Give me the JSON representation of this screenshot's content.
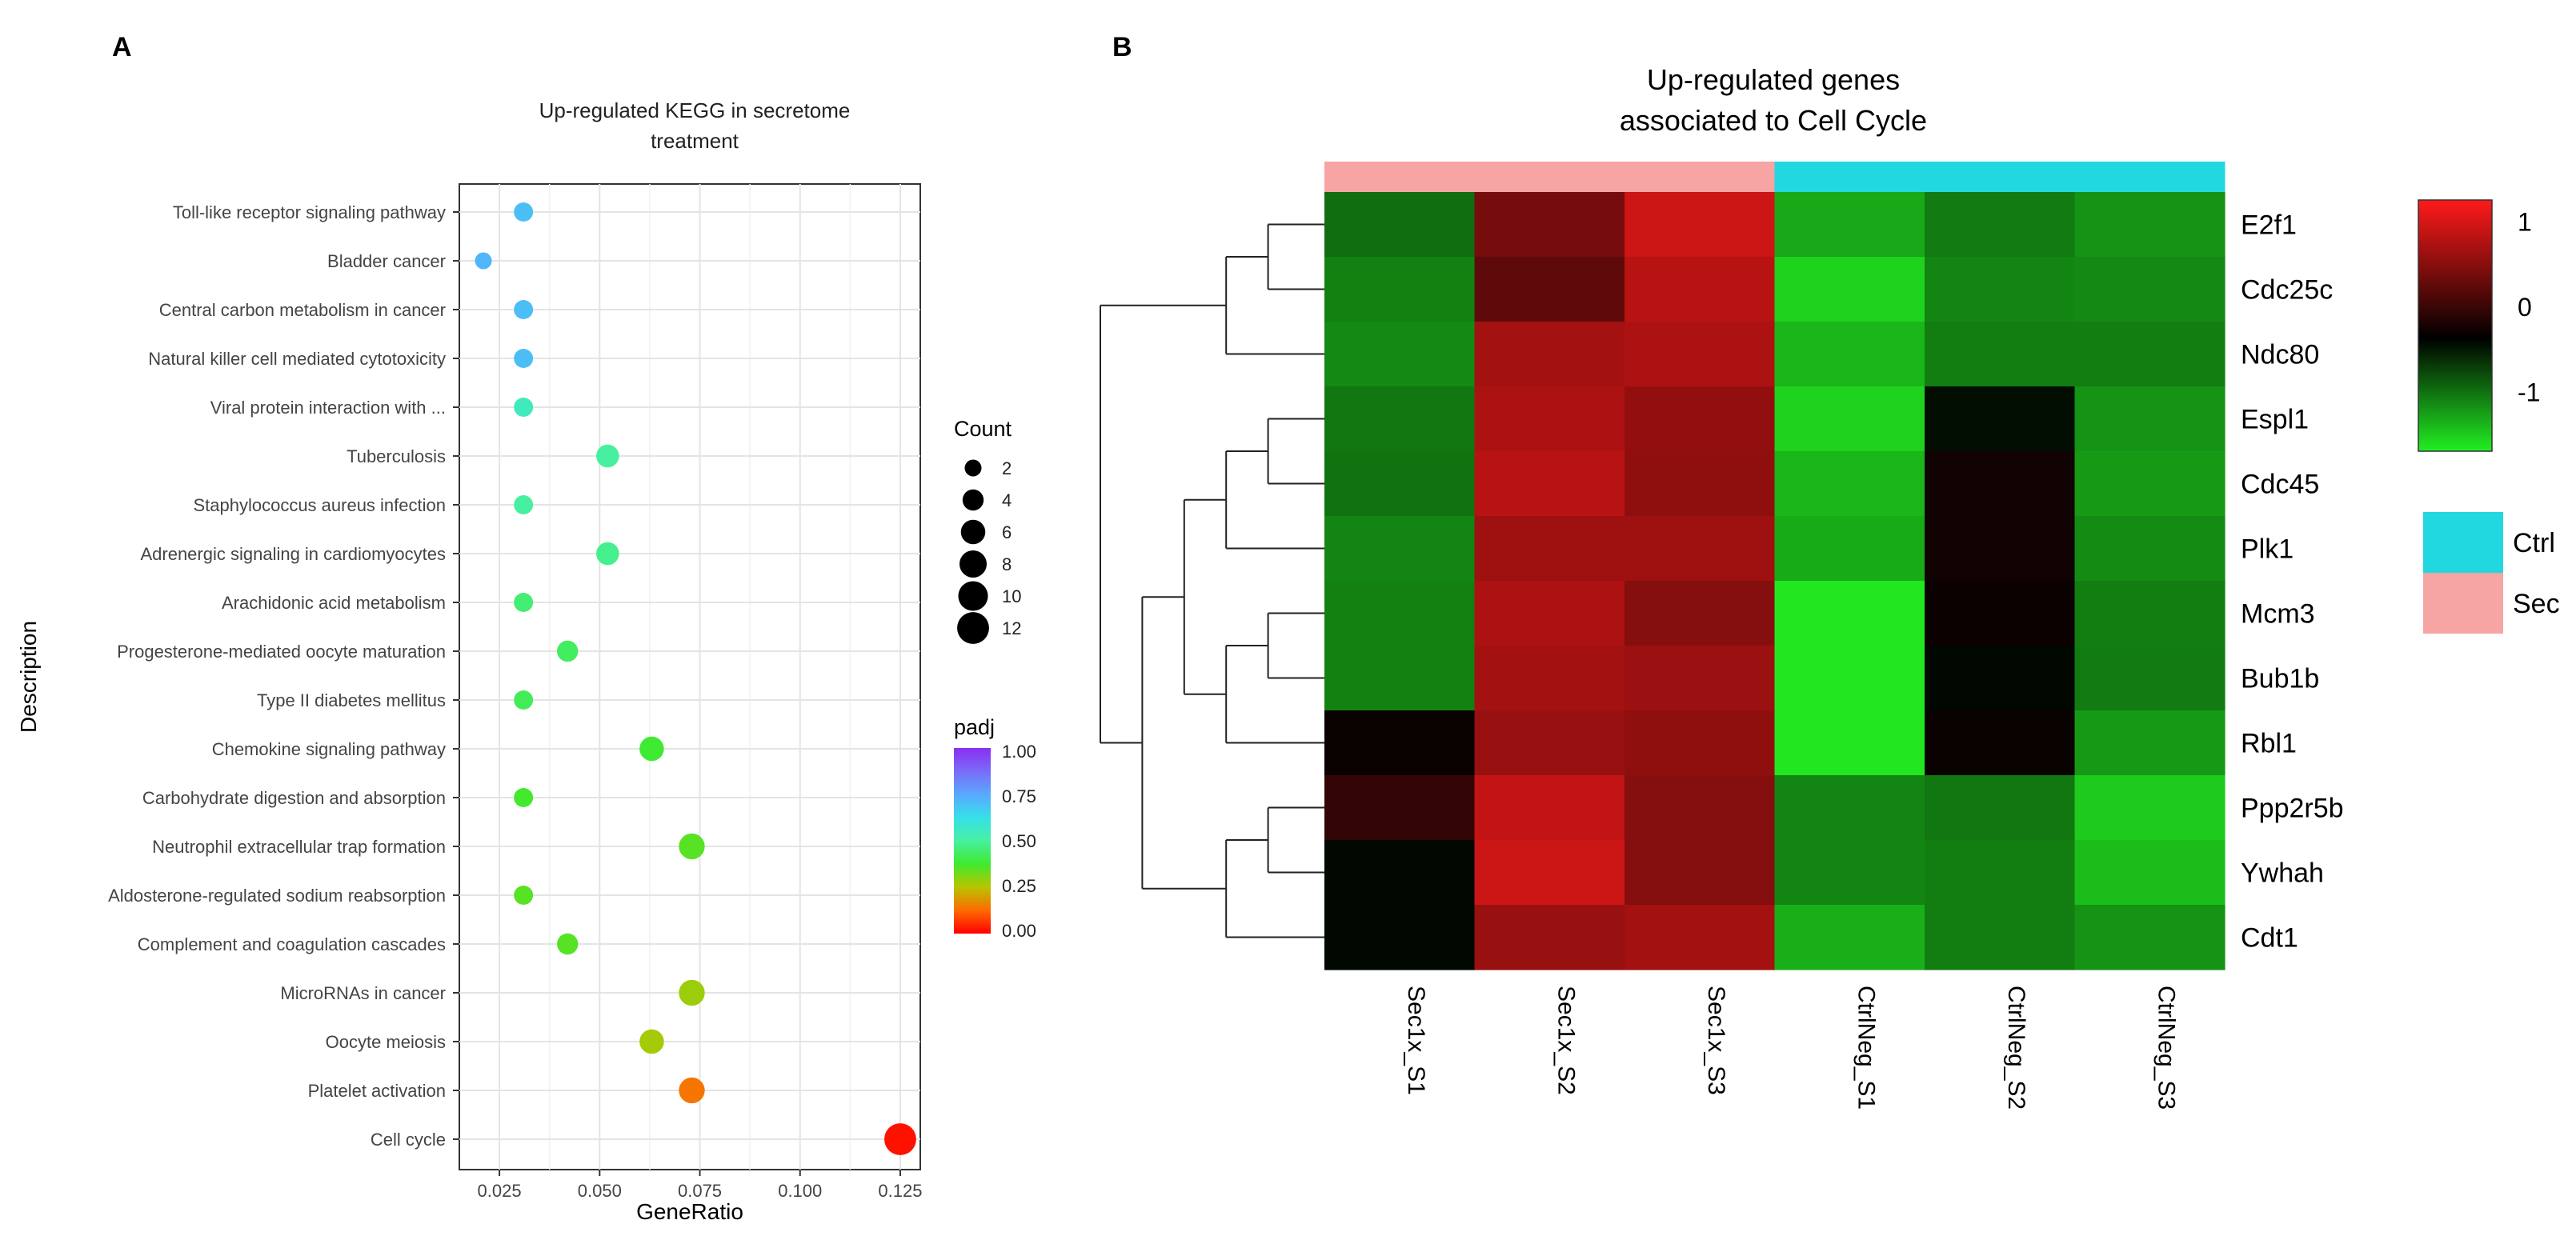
{
  "panels": {
    "a_label": "A",
    "b_label": "B"
  },
  "chart_data": [
    {
      "type": "scatter",
      "title_lines": [
        "Up-regulated KEGG in secretome",
        "treatment"
      ],
      "xlabel": "GeneRatio",
      "ylabel": "Description",
      "xlim": [
        0.015,
        0.13
      ],
      "x_ticks": [
        0.025,
        0.05,
        0.075,
        0.1,
        0.125
      ],
      "x_tick_labels": [
        "0.025",
        "0.050",
        "0.075",
        "0.100",
        "0.125"
      ],
      "grid": true,
      "legend_position": "right",
      "categories": [
        "Toll-like receptor signaling pathway",
        "Bladder cancer",
        "Central carbon metabolism in cancer",
        "Natural killer cell mediated cytotoxicity",
        "Viral protein interaction with ...",
        "Tuberculosis",
        "Staphylococcus aureus infection",
        "Adrenergic signaling in cardiomyocytes",
        "Arachidonic acid metabolism",
        "Progesterone-mediated oocyte maturation",
        "Type II diabetes mellitus",
        "Chemokine signaling pathway",
        "Carbohydrate digestion and absorption",
        "Neutrophil extracellular trap formation",
        "Aldosterone-regulated sodium reabsorption",
        "Complement and coagulation cascades",
        "MicroRNAs in cancer",
        "Oocyte meiosis",
        "Platelet activation",
        "Cell cycle"
      ],
      "gene_ratio": [
        0.031,
        0.021,
        0.031,
        0.031,
        0.031,
        0.052,
        0.031,
        0.052,
        0.031,
        0.042,
        0.031,
        0.063,
        0.031,
        0.073,
        0.031,
        0.042,
        0.073,
        0.063,
        0.073,
        0.125
      ],
      "count": [
        3,
        2,
        3,
        3,
        3,
        5,
        3,
        5,
        3,
        4,
        3,
        6,
        3,
        7,
        3,
        4,
        7,
        6,
        7,
        12
      ],
      "padj": [
        0.7,
        0.72,
        0.7,
        0.7,
        0.55,
        0.5,
        0.5,
        0.48,
        0.45,
        0.43,
        0.42,
        0.38,
        0.37,
        0.35,
        0.35,
        0.35,
        0.28,
        0.27,
        0.14,
        0.02
      ],
      "legend_count": {
        "title": "Count",
        "values": [
          2,
          4,
          6,
          8,
          10,
          12
        ],
        "labels": [
          "2",
          "4",
          "6",
          "8",
          "10",
          "12"
        ]
      },
      "legend_padj": {
        "title": "padj",
        "ticks": [
          1.0,
          0.75,
          0.5,
          0.25,
          0.0
        ],
        "tick_labels": [
          "1.00",
          "0.75",
          "0.50",
          "0.25",
          "0.00"
        ],
        "colors": [
          "#ff0000",
          "#ff6a00",
          "#b8c400",
          "#3fea2e",
          "#47f0a0",
          "#36e0e8",
          "#5aa8ff",
          "#7a6cf8",
          "#8a2ef2"
        ]
      }
    },
    {
      "type": "heatmap",
      "title_lines": [
        "Up-regulated genes",
        "associated to Cell Cycle"
      ],
      "rows": [
        "E2f1",
        "Cdc25c",
        "Ndc80",
        "Espl1",
        "Cdc45",
        "Plk1",
        "Mcm3",
        "Bub1b",
        "Rbl1",
        "Ppp2r5b",
        "Ywhah",
        "Cdt1"
      ],
      "columns": [
        "Sec1x_S1",
        "Sec1x_S2",
        "Sec1x_S3",
        "CtrlNeg_S1",
        "CtrlNeg_S2",
        "CtrlNeg_S3"
      ],
      "column_groups": [
        "Sec",
        "Sec",
        "Sec",
        "Ctrl",
        "Ctrl",
        "Ctrl"
      ],
      "group_legend": [
        {
          "name": "Ctrl",
          "color": "#22d8e0"
        },
        {
          "name": "Sec",
          "color": "#f7a4a4"
        }
      ],
      "values": [
        [
          -0.78,
          0.58,
          1.0,
          -1.2,
          -0.88,
          -1.05
        ],
        [
          -0.92,
          0.46,
          0.9,
          -1.5,
          -0.95,
          -0.98
        ],
        [
          -0.98,
          0.8,
          0.85,
          -1.3,
          -0.9,
          -0.9
        ],
        [
          -0.85,
          0.85,
          0.72,
          -1.5,
          -0.1,
          -1.05
        ],
        [
          -0.82,
          0.9,
          0.7,
          -1.3,
          0.08,
          -1.1
        ],
        [
          -0.95,
          0.78,
          0.78,
          -1.22,
          0.08,
          -1.0
        ],
        [
          -0.92,
          0.85,
          0.65,
          -1.65,
          0.06,
          -0.9
        ],
        [
          -0.92,
          0.8,
          0.76,
          -1.65,
          -0.05,
          -0.88
        ],
        [
          0.05,
          0.75,
          0.7,
          -1.65,
          0.05,
          -1.1
        ],
        [
          0.25,
          0.95,
          0.65,
          -0.95,
          -0.85,
          -1.45
        ],
        [
          -0.05,
          1.0,
          0.65,
          -0.95,
          -0.9,
          -1.35
        ],
        [
          -0.05,
          0.75,
          0.8,
          -1.25,
          -0.9,
          -1.05
        ]
      ],
      "color_scale": {
        "ticks": [
          1,
          0,
          -1
        ],
        "tick_labels": [
          "1",
          "0",
          "-1"
        ],
        "colors": [
          "#ff1a1a",
          "#000000",
          "#22ee22"
        ],
        "range": [
          -1.7,
          1.25
        ]
      },
      "dendrogram": {
        "description": "hierarchical clustering of rows"
      }
    }
  ]
}
